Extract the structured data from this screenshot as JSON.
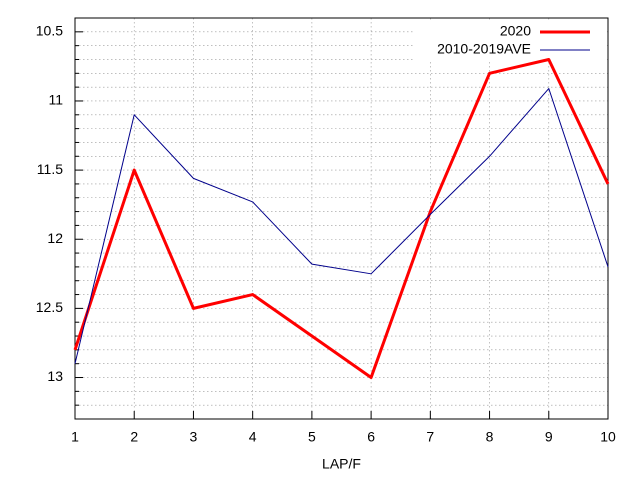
{
  "chart_data": {
    "type": "line",
    "x_label": "LAP/F",
    "x": [
      1,
      2,
      3,
      4,
      5,
      6,
      7,
      8,
      9,
      10
    ],
    "series": [
      {
        "name": "2020",
        "color": "#ff0000",
        "values": [
          12.8,
          11.5,
          12.5,
          12.4,
          12.7,
          13.0,
          11.8,
          10.8,
          10.7,
          11.6
        ]
      },
      {
        "name": "2010-2019AVE",
        "color": "#00008b",
        "values": [
          12.9,
          11.1,
          11.56,
          11.73,
          12.18,
          12.25,
          11.82,
          11.4,
          10.91,
          12.2
        ]
      }
    ],
    "xlim": [
      1,
      10
    ],
    "xticks": [
      1,
      2,
      3,
      4,
      5,
      6,
      7,
      8,
      9,
      10
    ],
    "ylim": [
      10.4,
      13.3
    ],
    "y_reversed": true,
    "yticks": [
      10.5,
      11,
      11.5,
      12,
      12.5,
      13
    ],
    "yminorticks": [
      10.6,
      10.7,
      10.8,
      10.9,
      11.1,
      11.2,
      11.3,
      11.4,
      11.6,
      11.7,
      11.8,
      11.9,
      12.1,
      12.2,
      12.3,
      12.4,
      12.6,
      12.7,
      12.8,
      12.9,
      13.1,
      13.2
    ],
    "grid": true,
    "legend": "top-right"
  }
}
